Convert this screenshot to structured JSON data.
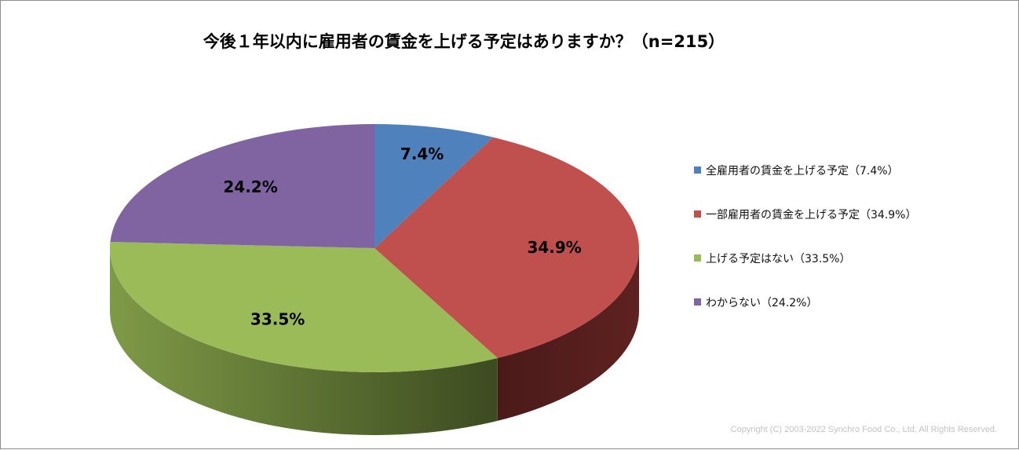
{
  "chart_data": {
    "type": "pie",
    "title": "今後１年以内に雇用者の賃金を上げる予定はありますか？（n=215）",
    "slices": [
      {
        "label": "全雇用者の賃金を上げる予定（7.4%）",
        "value": 7.4,
        "data_label": "7.4%",
        "color": "#4F81BD"
      },
      {
        "label": "一部雇用者の賃金を上げる予定（34.9%）",
        "value": 34.9,
        "data_label": "34.9%",
        "color": "#C0504D"
      },
      {
        "label": "上げる予定はない（33.5%）",
        "value": 33.5,
        "data_label": "33.5%",
        "color": "#9BBB59"
      },
      {
        "label": "わからない（24.2%）",
        "value": 24.2,
        "data_label": "24.2%",
        "color": "#8064A2"
      }
    ],
    "legend_position": "right",
    "style": "3d-pie"
  },
  "copyright": "Copyright (C) 2003-2022   Synchro Food Co., Ltd. All Rights Reserved."
}
